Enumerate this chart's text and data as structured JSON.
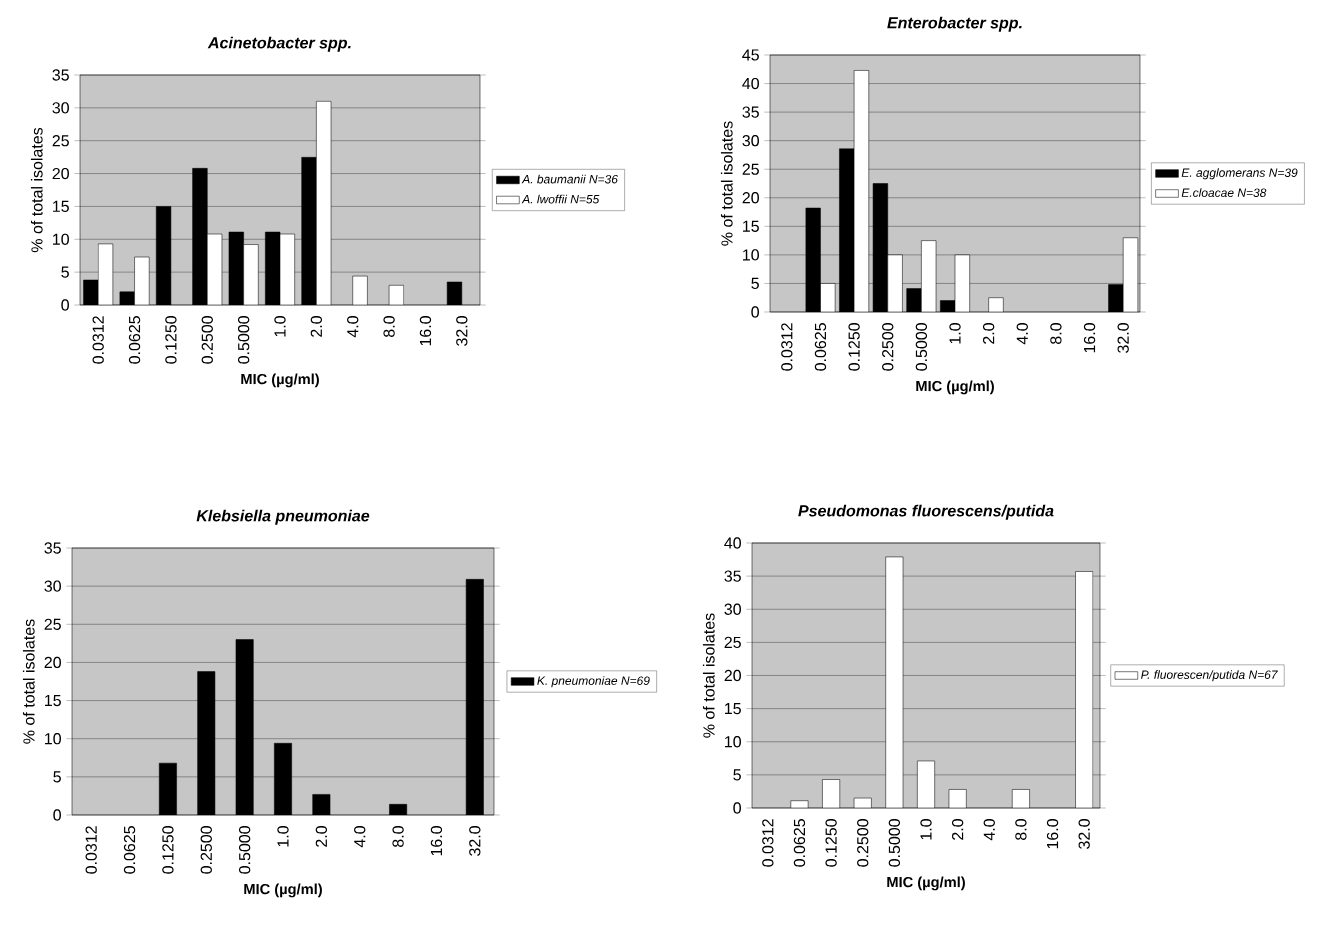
{
  "chart_data": [
    {
      "type": "bar",
      "title": "Acinetobacter spp.",
      "xlabel": "MIC (µg/ml)",
      "ylabel": "% of total isolates",
      "categories": [
        "0.0312",
        "0.0625",
        "0.1250",
        "0.2500",
        "0.5000",
        "1.0",
        "2.0",
        "4.0",
        "8.0",
        "16.0",
        "32.0"
      ],
      "series": [
        {
          "name": "A. baumanii N=36",
          "color": "#000000",
          "values": [
            3.8,
            2,
            15,
            20.8,
            11.1,
            11.1,
            22.5,
            null,
            null,
            null,
            3.5
          ]
        },
        {
          "name": "A. lwoffii N=55",
          "color": "#ffffff",
          "values": [
            9.3,
            7.3,
            null,
            10.8,
            9.2,
            10.8,
            31,
            4.4,
            3,
            null,
            null
          ]
        }
      ],
      "ylim": [
        0,
        35
      ],
      "yticks": [
        0,
        5,
        10,
        15,
        20,
        25,
        30,
        35
      ],
      "grid": "y",
      "legend": "right"
    },
    {
      "type": "bar",
      "title": "Enterobacter spp.",
      "xlabel": "MIC (µg/ml)",
      "ylabel": "% of total isolates",
      "categories": [
        "0.0312",
        "0.0625",
        "0.1250",
        "0.2500",
        "0.5000",
        "1.0",
        "2.0",
        "4.0",
        "8.0",
        "16.0",
        "32.0"
      ],
      "series": [
        {
          "name": "E. agglomerans N=39",
          "color": "#000000",
          "values": [
            null,
            18.2,
            28.6,
            22.5,
            4.1,
            2,
            null,
            null,
            null,
            null,
            4.8
          ]
        },
        {
          "name": "E.cloacae N=38",
          "color": "#ffffff",
          "values": [
            null,
            5,
            42.3,
            10,
            12.5,
            10,
            2.5,
            null,
            null,
            null,
            13
          ]
        }
      ],
      "ylim": [
        0,
        45
      ],
      "yticks": [
        0,
        5,
        10,
        15,
        20,
        25,
        30,
        35,
        40,
        45
      ],
      "grid": "y",
      "legend": "right"
    },
    {
      "type": "bar",
      "title": "Klebsiella pneumoniae",
      "xlabel": "MIC (µg/ml)",
      "ylabel": "% of total isolates",
      "categories": [
        "0.0312",
        "0.0625",
        "0.1250",
        "0.2500",
        "0.5000",
        "1.0",
        "2.0",
        "4.0",
        "8.0",
        "16.0",
        "32.0"
      ],
      "series": [
        {
          "name": "K. pneumoniae N=69",
          "color": "#000000",
          "values": [
            null,
            null,
            6.8,
            18.8,
            23,
            9.4,
            2.7,
            null,
            1.4,
            null,
            30.9
          ]
        }
      ],
      "ylim": [
        0,
        35
      ],
      "yticks": [
        0,
        5,
        10,
        15,
        20,
        25,
        30,
        35
      ],
      "grid": "y",
      "legend": "right"
    },
    {
      "type": "bar",
      "title": "Pseudomonas fluorescens/putida",
      "xlabel": "MIC (µg/ml)",
      "ylabel": "% of total isolates",
      "categories": [
        "0.0312",
        "0.0625",
        "0.1250",
        "0.2500",
        "0.5000",
        "1.0",
        "2.0",
        "4.0",
        "8.0",
        "16.0",
        "32.0"
      ],
      "series": [
        {
          "name": "P. fluorescen/putida N=67",
          "color": "#ffffff",
          "values": [
            null,
            1.1,
            4.3,
            1.5,
            37.9,
            7.1,
            2.8,
            null,
            2.8,
            null,
            35.7
          ]
        }
      ],
      "ylim": [
        0,
        40
      ],
      "yticks": [
        0,
        5,
        10,
        15,
        20,
        25,
        30,
        35,
        40
      ],
      "grid": "y",
      "legend": "right"
    }
  ]
}
